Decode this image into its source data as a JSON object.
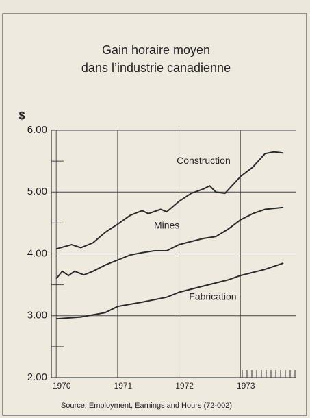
{
  "chart_data": {
    "type": "line",
    "title": [
      "Gain horaire moyen",
      "dans l’industrie canadienne"
    ],
    "y_label": "$",
    "source": "Source: Employment, Earnings and Hours (72-002)",
    "series": [
      {
        "name": "Construction",
        "color": "#2a2a2a",
        "x": [
          1970.0,
          1970.25,
          1970.4,
          1970.6,
          1970.8,
          1971.0,
          1971.2,
          1971.4,
          1971.5,
          1971.7,
          1971.8,
          1972.0,
          1972.2,
          1972.4,
          1972.5,
          1972.6,
          1972.75,
          1973.0,
          1973.2,
          1973.4,
          1973.55,
          1973.7
        ],
        "values": [
          4.08,
          4.15,
          4.1,
          4.18,
          4.35,
          4.48,
          4.62,
          4.7,
          4.65,
          4.72,
          4.68,
          4.85,
          4.98,
          5.05,
          5.1,
          5.0,
          4.98,
          5.25,
          5.4,
          5.62,
          5.65,
          5.63
        ]
      },
      {
        "name": "Mines",
        "color": "#2a2a2a",
        "x": [
          1970.0,
          1970.1,
          1970.2,
          1970.3,
          1970.45,
          1970.6,
          1970.8,
          1971.0,
          1971.2,
          1971.4,
          1971.6,
          1971.8,
          1972.0,
          1972.2,
          1972.4,
          1972.6,
          1972.8,
          1973.0,
          1973.2,
          1973.4,
          1973.7
        ],
        "values": [
          3.6,
          3.72,
          3.65,
          3.72,
          3.66,
          3.72,
          3.82,
          3.9,
          3.98,
          4.02,
          4.05,
          4.05,
          4.15,
          4.2,
          4.25,
          4.28,
          4.4,
          4.55,
          4.65,
          4.72,
          4.75
        ]
      },
      {
        "name": "Fabrication",
        "color": "#2a2a2a",
        "x": [
          1970.0,
          1970.4,
          1970.8,
          1971.0,
          1971.4,
          1971.8,
          1972.0,
          1972.4,
          1972.8,
          1973.0,
          1973.4,
          1973.7
        ],
        "values": [
          2.95,
          2.98,
          3.05,
          3.15,
          3.22,
          3.3,
          3.38,
          3.48,
          3.58,
          3.65,
          3.75,
          3.85
        ]
      }
    ],
    "xlim": [
      1969.92,
      1973.9
    ],
    "xticks": [
      1970,
      1971,
      1972,
      1973
    ],
    "ylim": [
      2,
      6
    ],
    "yticks": [
      {
        "value": 2,
        "label": "2.00"
      },
      {
        "value": 3,
        "label": "3.00"
      },
      {
        "value": 4,
        "label": "4.00"
      },
      {
        "value": 5,
        "label": "5.00"
      },
      {
        "value": 6,
        "label": "6.00"
      }
    ],
    "grid": true
  }
}
